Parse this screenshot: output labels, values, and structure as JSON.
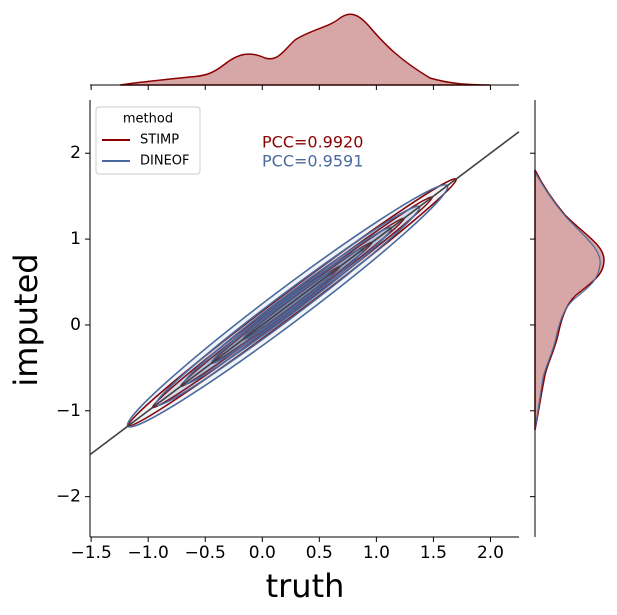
{
  "chart_data": {
    "type": "kde_joint",
    "x_label": "truth",
    "y_label": "imputed",
    "legend_title": "method",
    "series": [
      {
        "name": "STIMP",
        "color": "#8b0000"
      },
      {
        "name": "DINEOF",
        "color": "#4a6a9e"
      }
    ],
    "annotations": [
      "PCC=0.9920",
      "PCC=0.9591"
    ],
    "xlim": [
      -1.51,
      2.25
    ],
    "ylim": [
      -2.47,
      2.62
    ],
    "xticks": [
      {
        "value": -1.5,
        "label": "−1.5"
      },
      {
        "value": -1.0,
        "label": "−1.0"
      },
      {
        "value": -0.5,
        "label": "−0.5"
      },
      {
        "value": 0.0,
        "label": "0.0"
      },
      {
        "value": 0.5,
        "label": "0.5"
      },
      {
        "value": 1.0,
        "label": "1.0"
      },
      {
        "value": 1.5,
        "label": "1.5"
      },
      {
        "value": 2.0,
        "label": "2.0"
      }
    ],
    "yticks": [
      {
        "value": -2,
        "label": "−2"
      },
      {
        "value": -1,
        "label": "−1"
      },
      0,
      1,
      2
    ],
    "legend": "upper left"
  }
}
